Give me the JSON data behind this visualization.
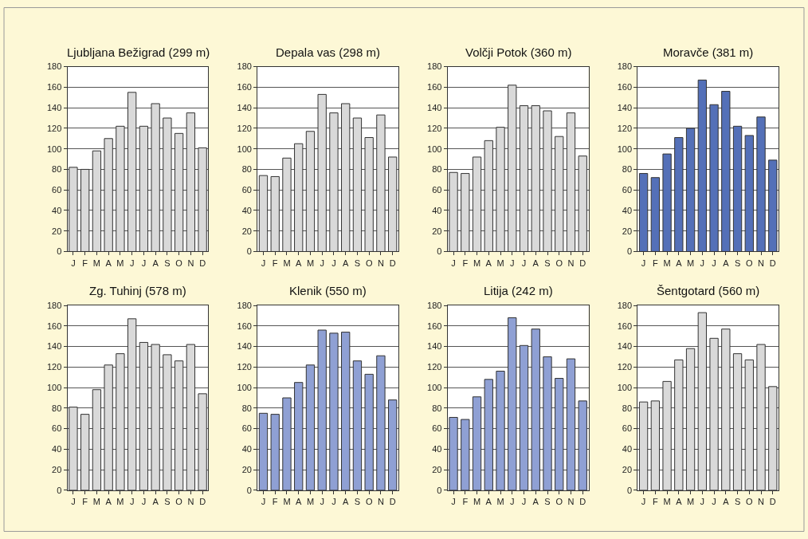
{
  "chart_data": [
    {
      "type": "bar",
      "title": "Ljubljana Bežigrad (299 m)",
      "categories": [
        "J",
        "F",
        "M",
        "A",
        "M",
        "J",
        "J",
        "A",
        "S",
        "O",
        "N",
        "D"
      ],
      "values": [
        82,
        80,
        98,
        110,
        122,
        155,
        122,
        144,
        130,
        115,
        135,
        101
      ],
      "color": "#d9d9d9",
      "ylim": [
        0,
        180
      ],
      "yticks": [
        0,
        20,
        40,
        60,
        80,
        100,
        120,
        140,
        160,
        180
      ],
      "grid": "y"
    },
    {
      "type": "bar",
      "title": "Depala vas (298 m)",
      "categories": [
        "J",
        "F",
        "M",
        "A",
        "M",
        "J",
        "J",
        "A",
        "S",
        "O",
        "N",
        "D"
      ],
      "values": [
        74,
        73,
        91,
        105,
        117,
        153,
        135,
        144,
        130,
        111,
        133,
        92
      ],
      "color": "#d9d9d9",
      "ylim": [
        0,
        180
      ],
      "yticks": [
        0,
        20,
        40,
        60,
        80,
        100,
        120,
        140,
        160,
        180
      ],
      "grid": "y"
    },
    {
      "type": "bar",
      "title": "Volčji Potok (360 m)",
      "categories": [
        "J",
        "F",
        "M",
        "A",
        "M",
        "J",
        "J",
        "A",
        "S",
        "O",
        "N",
        "D"
      ],
      "values": [
        77,
        76,
        92,
        108,
        121,
        162,
        142,
        142,
        137,
        112,
        135,
        93
      ],
      "color": "#d9d9d9",
      "ylim": [
        0,
        180
      ],
      "yticks": [
        0,
        20,
        40,
        60,
        80,
        100,
        120,
        140,
        160,
        180
      ],
      "grid": "y"
    },
    {
      "type": "bar",
      "title": "Moravče (381 m)",
      "categories": [
        "J",
        "F",
        "M",
        "A",
        "M",
        "J",
        "J",
        "A",
        "S",
        "O",
        "N",
        "D"
      ],
      "values": [
        76,
        72,
        95,
        111,
        120,
        167,
        143,
        156,
        122,
        113,
        131,
        89
      ],
      "color": "#5470b8",
      "ylim": [
        0,
        180
      ],
      "yticks": [
        0,
        20,
        40,
        60,
        80,
        100,
        120,
        140,
        160,
        180
      ],
      "grid": "y"
    },
    {
      "type": "bar",
      "title": "Zg. Tuhinj (578 m)",
      "categories": [
        "J",
        "F",
        "M",
        "A",
        "M",
        "J",
        "J",
        "A",
        "S",
        "O",
        "N",
        "D"
      ],
      "values": [
        81,
        74,
        98,
        122,
        133,
        167,
        144,
        142,
        132,
        126,
        142,
        94
      ],
      "color": "#d9d9d9",
      "ylim": [
        0,
        180
      ],
      "yticks": [
        0,
        20,
        40,
        60,
        80,
        100,
        120,
        140,
        160,
        180
      ],
      "grid": "y"
    },
    {
      "type": "bar",
      "title": "Klenik (550 m)",
      "categories": [
        "J",
        "F",
        "M",
        "A",
        "M",
        "J",
        "J",
        "A",
        "S",
        "O",
        "N",
        "D"
      ],
      "values": [
        75,
        74,
        90,
        105,
        122,
        156,
        153,
        154,
        126,
        113,
        131,
        88
      ],
      "color": "#8fa0d4",
      "ylim": [
        0,
        180
      ],
      "yticks": [
        0,
        20,
        40,
        60,
        80,
        100,
        120,
        140,
        160,
        180
      ],
      "grid": "y"
    },
    {
      "type": "bar",
      "title": "Litija (242 m)",
      "categories": [
        "J",
        "F",
        "M",
        "A",
        "M",
        "J",
        "J",
        "A",
        "S",
        "O",
        "N",
        "D"
      ],
      "values": [
        71,
        69,
        91,
        108,
        116,
        168,
        141,
        157,
        130,
        109,
        128,
        87
      ],
      "color": "#8fa0d4",
      "ylim": [
        0,
        180
      ],
      "yticks": [
        0,
        20,
        40,
        60,
        80,
        100,
        120,
        140,
        160,
        180
      ],
      "grid": "y"
    },
    {
      "type": "bar",
      "title": "Šentgotard (560 m)",
      "categories": [
        "J",
        "F",
        "M",
        "A",
        "M",
        "J",
        "J",
        "A",
        "S",
        "O",
        "N",
        "D"
      ],
      "values": [
        86,
        87,
        106,
        127,
        138,
        173,
        148,
        157,
        133,
        127,
        142,
        101
      ],
      "color": "#d9d9d9",
      "ylim": [
        0,
        180
      ],
      "yticks": [
        0,
        20,
        40,
        60,
        80,
        100,
        120,
        140,
        160,
        180
      ],
      "grid": "y"
    }
  ]
}
